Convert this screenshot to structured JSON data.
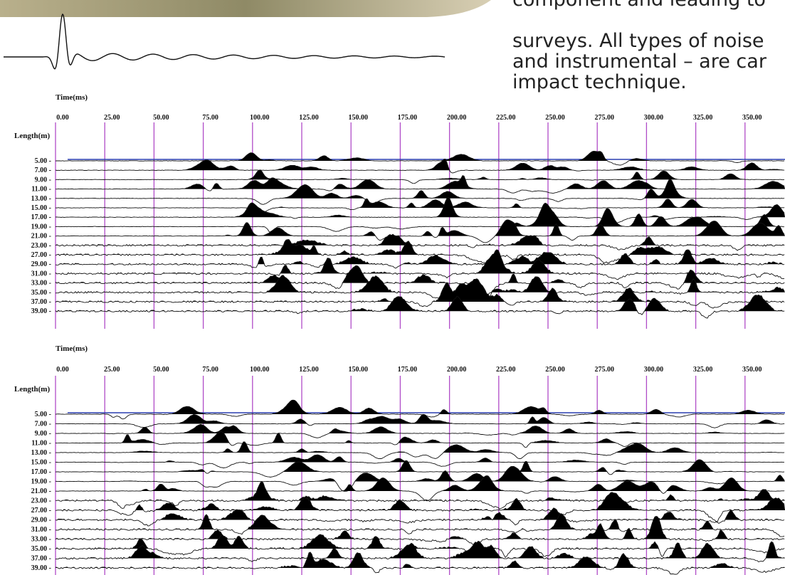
{
  "article": {
    "text_lines": [
      "component and leading to",
      "surveys. All types of noise",
      "and instrumental – are car",
      "impact technique."
    ]
  },
  "figures": [
    {
      "time_label": "Time(ms)",
      "length_label": "Length(m)",
      "time_ticks": [
        "0.00",
        "25.00",
        "50.00",
        "75.00",
        "100.00",
        "125.00",
        "150.00",
        "175.00",
        "200.00",
        "225.00",
        "250.00",
        "275.00",
        "300.00",
        "325.00",
        "350.00"
      ],
      "length_ticks": [
        "5.00 -",
        "7.00 -",
        "9.00 -",
        "11.00 -",
        "13.00 -",
        "15.00 -",
        "17.00 -",
        "19.00 -",
        "21.00 -",
        "23.00 -",
        "27.00 -",
        "29.00 -",
        "31.00 -",
        "33.00 -",
        "35.00 -",
        "37.00 -",
        "39.00 -"
      ]
    },
    {
      "time_label": "Time(ms)",
      "length_label": "Length(m)",
      "time_ticks": [
        "0.00",
        "25.00",
        "50.00",
        "75.00",
        "100.00",
        "125.00",
        "150.00",
        "175.00",
        "200.00",
        "225.00",
        "250.00",
        "275.00",
        "300.00",
        "325.00",
        "350.00"
      ],
      "length_ticks": [
        "5.00 -",
        "7.00 -",
        "9.00 -",
        "11.00 -",
        "13.00 -",
        "15.00 -",
        "17.00 -",
        "19.00 -",
        "21.00 -",
        "23.00 -",
        "27.00 -",
        "29.00 -",
        "31.00 -",
        "33.00 -",
        "35.00 -",
        "37.00 -",
        "39.00 -"
      ]
    }
  ]
}
